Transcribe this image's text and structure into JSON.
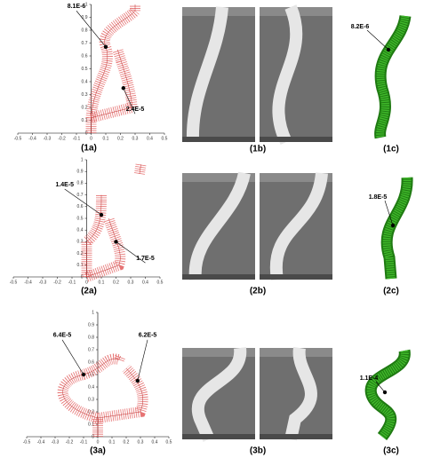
{
  "rows": [
    {
      "plot": {
        "label": "(1a)",
        "xlim": [
          -0.5,
          0.5
        ],
        "ylim": [
          0,
          1
        ],
        "xticks": [
          -0.5,
          -0.4,
          -0.3,
          -0.2,
          -0.1,
          0,
          0.1,
          0.2,
          0.3,
          0.4,
          0.5
        ],
        "yticks": [
          0,
          0.1,
          0.2,
          0.3,
          0.4,
          0.5,
          0.6,
          0.7,
          0.8,
          0.9,
          1
        ],
        "annotations": [
          "8.1E-6",
          "2.4E-5"
        ]
      },
      "photo_label": "(1b)",
      "render": {
        "label": "(1c)",
        "annotations": [
          "8.2E-6"
        ]
      }
    },
    {
      "plot": {
        "label": "(2a)",
        "xlim": [
          -0.5,
          0.5
        ],
        "ylim": [
          0,
          1
        ],
        "xticks": [
          -0.5,
          -0.4,
          -0.3,
          -0.2,
          -0.1,
          0,
          0.1,
          0.2,
          0.3,
          0.4,
          0.5
        ],
        "yticks": [
          0,
          0.1,
          0.2,
          0.3,
          0.4,
          0.5,
          0.6,
          0.7,
          0.8,
          0.9,
          1
        ],
        "annotations": [
          "1.4E-5",
          "1.7E-5"
        ]
      },
      "photo_label": "(2b)",
      "render": {
        "label": "(2c)",
        "annotations": [
          "1.8E-5"
        ]
      }
    },
    {
      "plot": {
        "label": "(3a)",
        "xlim": [
          -0.5,
          0.5
        ],
        "ylim": [
          0,
          1
        ],
        "xticks": [
          -0.5,
          -0.4,
          -0.3,
          -0.2,
          -0.1,
          0,
          0.1,
          0.2,
          0.3,
          0.4,
          0.5
        ],
        "yticks": [
          0,
          0.1,
          0.2,
          0.3,
          0.4,
          0.5,
          0.6,
          0.7,
          0.8,
          0.9,
          1
        ],
        "annotations": [
          "6.4E-5",
          "6.2E-5"
        ]
      },
      "photo_label": "(3b)",
      "render": {
        "label": "(3c)",
        "annotations": [
          "1.1E-4"
        ]
      }
    }
  ]
}
